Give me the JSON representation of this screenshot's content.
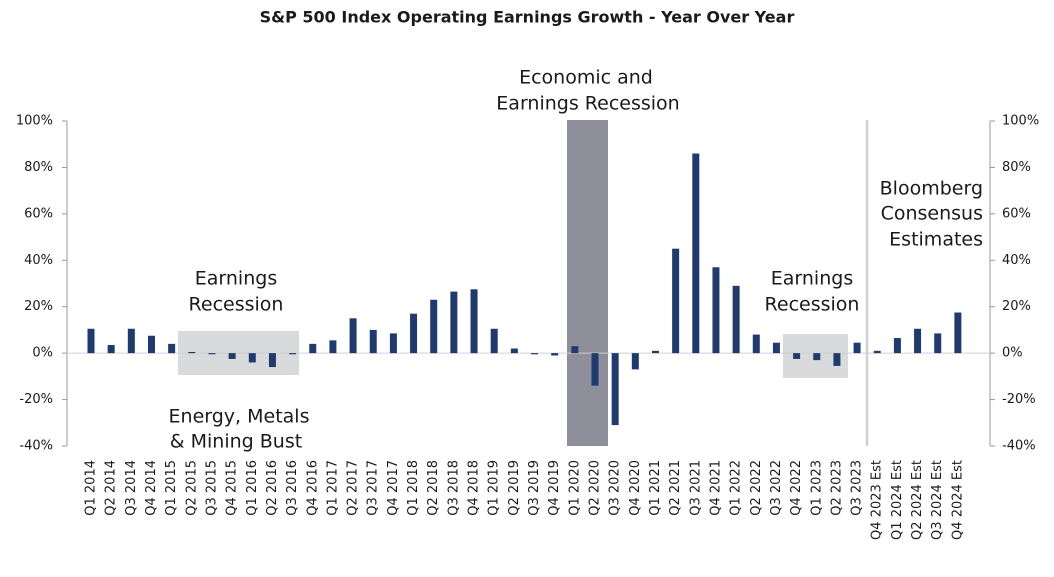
{
  "chart_data": {
    "type": "bar",
    "title": "S&P 500 Index Operating Earnings Growth - Year Over Year",
    "categories": [
      "Q1 2014",
      "Q2 2014",
      "Q3 2014",
      "Q4 2014",
      "Q1 2015",
      "Q2 2015",
      "Q3 2015",
      "Q4 2015",
      "Q1 2016",
      "Q2 2016",
      "Q3 2016",
      "Q4 2016",
      "Q1 2017",
      "Q2 2017",
      "Q3 2017",
      "Q4 2017",
      "Q1 2018",
      "Q2 2018",
      "Q3 2018",
      "Q4 2018",
      "Q1 2019",
      "Q2 2019",
      "Q3 2019",
      "Q4 2019",
      "Q1 2020",
      "Q2 2020",
      "Q3 2020",
      "Q4 2020",
      "Q1 2021",
      "Q2 2021",
      "Q3 2021",
      "Q4 2021",
      "Q1 2022",
      "Q2 2022",
      "Q3 2022",
      "Q4 2022",
      "Q1 2023",
      "Q2 2023",
      "Q3 2023",
      "Q4 2023 Est",
      "Q1 2024 Est",
      "Q2 2024 Est",
      "Q3 2024 Est",
      "Q4 2024 Est"
    ],
    "values": [
      10.5,
      3.5,
      10.5,
      7.5,
      4,
      0.5,
      -0.5,
      -2.5,
      -4,
      -6,
      -0.5,
      4,
      5.5,
      15,
      10,
      8.5,
      17,
      23,
      26.5,
      27.5,
      10.5,
      2,
      -0.5,
      -1,
      3,
      -14,
      -31,
      -7,
      1,
      45,
      86,
      37,
      29,
      8,
      4.5,
      -2.5,
      -3,
      -5.5,
      4.5,
      1,
      6.5,
      10.5,
      8.5,
      17.5
    ],
    "color": "#1f3a6e",
    "ylim": [
      -40,
      100
    ],
    "yticks": [
      {
        "value": -40,
        "label": "-40%"
      },
      {
        "value": -20,
        "label": "-20%"
      },
      {
        "value": 0,
        "label": "0%"
      },
      {
        "value": 20,
        "label": "20%"
      },
      {
        "value": 40,
        "label": "40%"
      },
      {
        "value": 60,
        "label": "60%"
      },
      {
        "value": 80,
        "label": "80%"
      },
      {
        "value": 100,
        "label": "100%"
      }
    ],
    "y2lim": [
      -40,
      100
    ],
    "y2ticks": [
      {
        "value": -40,
        "label": "-40%"
      },
      {
        "value": -20,
        "label": "-20%"
      },
      {
        "value": 0,
        "label": "0%"
      },
      {
        "value": 20,
        "label": "20%"
      },
      {
        "value": 40,
        "label": "40%"
      },
      {
        "value": 60,
        "label": "60%"
      },
      {
        "value": 80,
        "label": "80%"
      },
      {
        "value": 100,
        "label": "100%"
      }
    ],
    "annotations": [
      {
        "lines": [
          "Economic and",
          "Earnings Recession"
        ]
      },
      {
        "lines": [
          "Earnings",
          "Recession"
        ]
      },
      {
        "lines": [
          "Energy, Metals",
          "& Mining Bust"
        ]
      },
      {
        "lines": [
          "Earnings",
          "Recession"
        ]
      },
      {
        "lines": [
          "Bloomberg",
          "Consensus",
          "Estimates"
        ]
      }
    ]
  }
}
